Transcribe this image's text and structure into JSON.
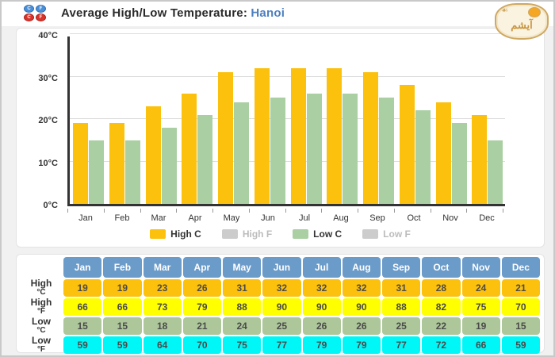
{
  "header": {
    "title": "Average High/Low Temperature:",
    "city": "Hanoi",
    "unit_icons": [
      "C",
      "F",
      "C",
      "F"
    ],
    "logo_text": "آیشم"
  },
  "colors": {
    "high_c": "#fcc10d",
    "high_f": "#ffff00",
    "low_c_bar": "#a9cfa2",
    "low_c_row": "#adc79a",
    "low_f": "#00f7f7",
    "disabled_swatch": "#cccccc",
    "disabled_text": "#bcbcbc",
    "table_header": "#6b9bc9",
    "axis": "#333333",
    "gridline": "#dddddd"
  },
  "chart_data": {
    "type": "bar",
    "title": "Average High/Low Temperature: Hanoi",
    "categories": [
      "Jan",
      "Feb",
      "Mar",
      "Apr",
      "May",
      "Jun",
      "Jul",
      "Aug",
      "Sep",
      "Oct",
      "Nov",
      "Dec"
    ],
    "series": [
      {
        "name": "High C",
        "visible": true,
        "color": "#fcc10d",
        "values": [
          19,
          19,
          23,
          26,
          31,
          32,
          32,
          32,
          31,
          28,
          24,
          21
        ]
      },
      {
        "name": "High F",
        "visible": false,
        "color": "#cccccc",
        "values": [
          66,
          66,
          73,
          79,
          88,
          90,
          90,
          90,
          88,
          82,
          75,
          70
        ]
      },
      {
        "name": "Low C",
        "visible": true,
        "color": "#a9cfa2",
        "values": [
          15,
          15,
          18,
          21,
          24,
          25,
          26,
          26,
          25,
          22,
          19,
          15
        ]
      },
      {
        "name": "Low F",
        "visible": false,
        "color": "#cccccc",
        "values": [
          59,
          59,
          64,
          70,
          75,
          77,
          79,
          79,
          77,
          72,
          66,
          59
        ]
      }
    ],
    "ylim": [
      0,
      40
    ],
    "ytick_values": [
      0,
      10,
      20,
      30,
      40
    ],
    "ytick_labels": [
      "0°C",
      "10°C",
      "20°C",
      "30°C",
      "40°C"
    ],
    "grid": true,
    "legend_position": "bottom"
  },
  "table": {
    "columns": [
      "Jan",
      "Feb",
      "Mar",
      "Apr",
      "May",
      "Jun",
      "Jul",
      "Aug",
      "Sep",
      "Oct",
      "Nov",
      "Dec"
    ],
    "rows": [
      {
        "label_top": "High",
        "label_sub": "°C",
        "bg": "#fcc10d",
        "values": [
          19,
          19,
          23,
          26,
          31,
          32,
          32,
          32,
          31,
          28,
          24,
          21
        ]
      },
      {
        "label_top": "High",
        "label_sub": "°F",
        "bg": "#ffff00",
        "values": [
          66,
          66,
          73,
          79,
          88,
          90,
          90,
          90,
          88,
          82,
          75,
          70
        ]
      },
      {
        "label_top": "Low",
        "label_sub": "°C",
        "bg": "#adc79a",
        "values": [
          15,
          15,
          18,
          21,
          24,
          25,
          26,
          26,
          25,
          22,
          19,
          15
        ]
      },
      {
        "label_top": "Low",
        "label_sub": "°F",
        "bg": "#00f7f7",
        "values": [
          59,
          59,
          64,
          70,
          75,
          77,
          79,
          79,
          77,
          72,
          66,
          59
        ]
      }
    ]
  }
}
